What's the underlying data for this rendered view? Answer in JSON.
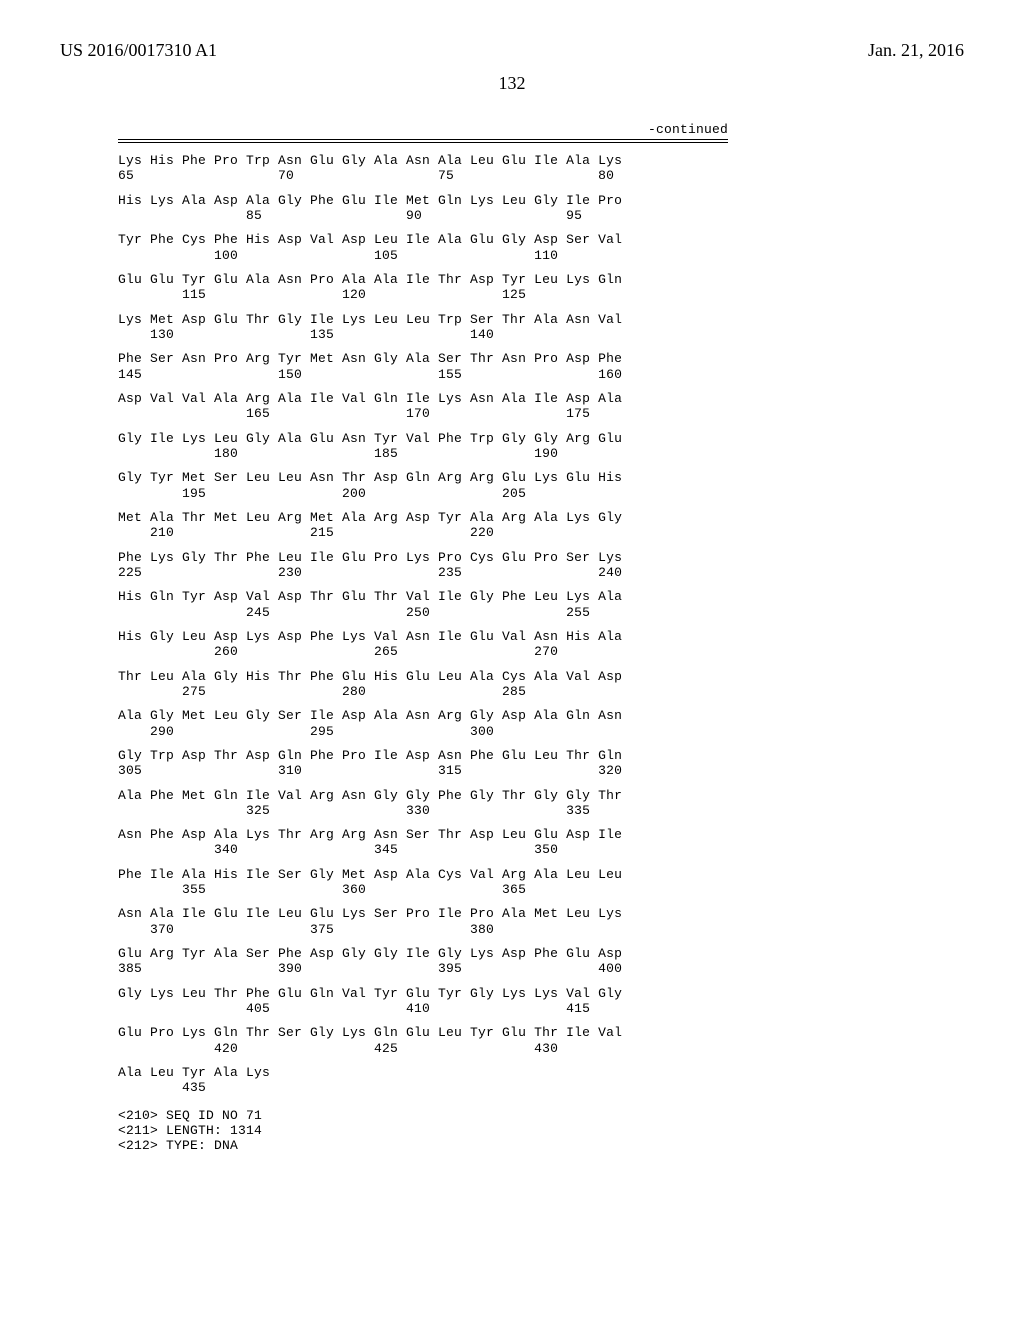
{
  "header": {
    "left": "US 2016/0017310 A1",
    "right": "Jan. 21, 2016"
  },
  "pagenum": "132",
  "cont_label": "-continued",
  "seq_blocks": [
    {
      "aa": "Lys His Phe Pro Trp Asn Glu Gly Ala Asn Ala Leu Glu Ile Ala Lys",
      "nums": "65                  70                  75                  80"
    },
    {
      "aa": "His Lys Ala Asp Ala Gly Phe Glu Ile Met Gln Lys Leu Gly Ile Pro",
      "nums": "                85                  90                  95"
    },
    {
      "aa": "Tyr Phe Cys Phe His Asp Val Asp Leu Ile Ala Glu Gly Asp Ser Val",
      "nums": "            100                 105                 110"
    },
    {
      "aa": "Glu Glu Tyr Glu Ala Asn Pro Ala Ala Ile Thr Asp Tyr Leu Lys Gln",
      "nums": "        115                 120                 125"
    },
    {
      "aa": "Lys Met Asp Glu Thr Gly Ile Lys Leu Leu Trp Ser Thr Ala Asn Val",
      "nums": "    130                 135                 140"
    },
    {
      "aa": "Phe Ser Asn Pro Arg Tyr Met Asn Gly Ala Ser Thr Asn Pro Asp Phe",
      "nums": "145                 150                 155                 160"
    },
    {
      "aa": "Asp Val Val Ala Arg Ala Ile Val Gln Ile Lys Asn Ala Ile Asp Ala",
      "nums": "                165                 170                 175"
    },
    {
      "aa": "Gly Ile Lys Leu Gly Ala Glu Asn Tyr Val Phe Trp Gly Gly Arg Glu",
      "nums": "            180                 185                 190"
    },
    {
      "aa": "Gly Tyr Met Ser Leu Leu Asn Thr Asp Gln Arg Arg Glu Lys Glu His",
      "nums": "        195                 200                 205"
    },
    {
      "aa": "Met Ala Thr Met Leu Arg Met Ala Arg Asp Tyr Ala Arg Ala Lys Gly",
      "nums": "    210                 215                 220"
    },
    {
      "aa": "Phe Lys Gly Thr Phe Leu Ile Glu Pro Lys Pro Cys Glu Pro Ser Lys",
      "nums": "225                 230                 235                 240"
    },
    {
      "aa": "His Gln Tyr Asp Val Asp Thr Glu Thr Val Ile Gly Phe Leu Lys Ala",
      "nums": "                245                 250                 255"
    },
    {
      "aa": "His Gly Leu Asp Lys Asp Phe Lys Val Asn Ile Glu Val Asn His Ala",
      "nums": "            260                 265                 270"
    },
    {
      "aa": "Thr Leu Ala Gly His Thr Phe Glu His Glu Leu Ala Cys Ala Val Asp",
      "nums": "        275                 280                 285"
    },
    {
      "aa": "Ala Gly Met Leu Gly Ser Ile Asp Ala Asn Arg Gly Asp Ala Gln Asn",
      "nums": "    290                 295                 300"
    },
    {
      "aa": "Gly Trp Asp Thr Asp Gln Phe Pro Ile Asp Asn Phe Glu Leu Thr Gln",
      "nums": "305                 310                 315                 320"
    },
    {
      "aa": "Ala Phe Met Gln Ile Val Arg Asn Gly Gly Phe Gly Thr Gly Gly Thr",
      "nums": "                325                 330                 335"
    },
    {
      "aa": "Asn Phe Asp Ala Lys Thr Arg Arg Asn Ser Thr Asp Leu Glu Asp Ile",
      "nums": "            340                 345                 350"
    },
    {
      "aa": "Phe Ile Ala His Ile Ser Gly Met Asp Ala Cys Val Arg Ala Leu Leu",
      "nums": "        355                 360                 365"
    },
    {
      "aa": "Asn Ala Ile Glu Ile Leu Glu Lys Ser Pro Ile Pro Ala Met Leu Lys",
      "nums": "    370                 375                 380"
    },
    {
      "aa": "Glu Arg Tyr Ala Ser Phe Asp Gly Gly Ile Gly Lys Asp Phe Glu Asp",
      "nums": "385                 390                 395                 400"
    },
    {
      "aa": "Gly Lys Leu Thr Phe Glu Gln Val Tyr Glu Tyr Gly Lys Lys Val Gly",
      "nums": "                405                 410                 415"
    },
    {
      "aa": "Glu Pro Lys Gln Thr Ser Gly Lys Gln Glu Leu Tyr Glu Thr Ile Val",
      "nums": "            420                 425                 430"
    },
    {
      "aa": "Ala Leu Tyr Ala Lys",
      "nums": "        435"
    }
  ],
  "meta_lines": [
    "<210> SEQ ID NO 71",
    "<211> LENGTH: 1314",
    "<212> TYPE: DNA"
  ]
}
